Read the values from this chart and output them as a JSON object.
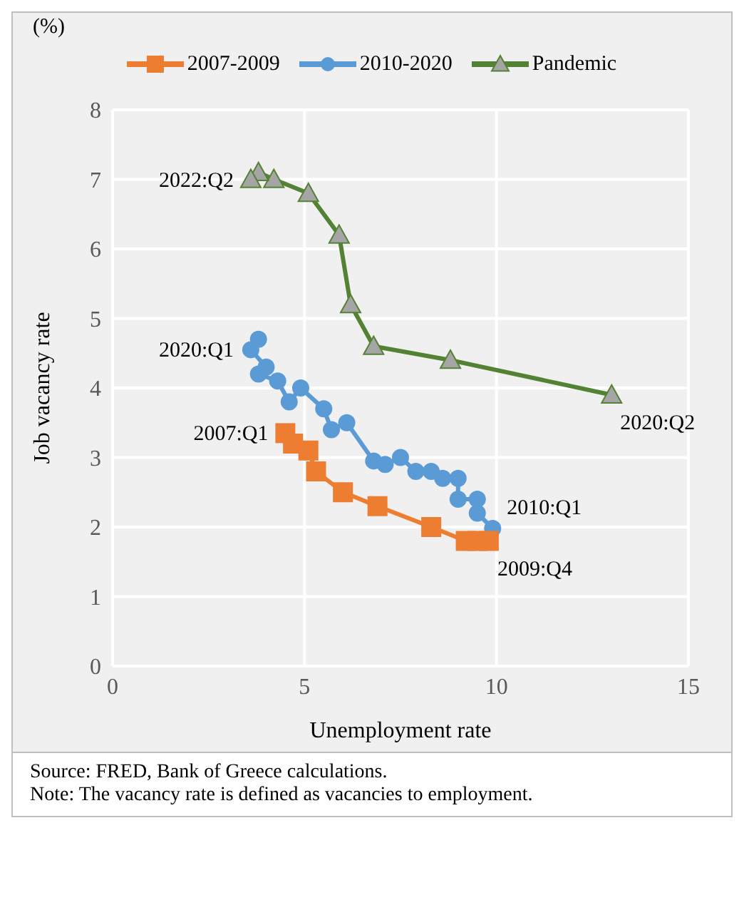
{
  "chart_data": {
    "type": "line",
    "xlabel": "Unemployment rate",
    "ylabel": "Job vacancy rate",
    "xlim": [
      0,
      15
    ],
    "xticks": [
      0,
      5,
      10,
      15
    ],
    "ylim": [
      0,
      8
    ],
    "yticks": [
      0,
      1,
      2,
      3,
      4,
      5,
      6,
      7,
      8
    ],
    "grid": true,
    "legend": "top",
    "series": [
      {
        "name": "2007-2009",
        "color": "#ed7d31",
        "marker": "square",
        "x": [
          4.5,
          4.7,
          5.1,
          5.3,
          6.0,
          6.9,
          8.3,
          9.2,
          9.5,
          9.8
        ],
        "values": [
          3.35,
          3.2,
          3.1,
          2.8,
          2.5,
          2.3,
          2.0,
          1.8,
          1.8,
          1.8
        ]
      },
      {
        "name": "2010-2020",
        "color": "#5b9bd5",
        "marker": "circle",
        "x": [
          9.9,
          9.5,
          9.5,
          9.0,
          9.0,
          8.6,
          8.3,
          7.9,
          7.5,
          7.1,
          6.8,
          6.1,
          5.7,
          5.5,
          4.9,
          4.6,
          4.3,
          3.8,
          4.0,
          3.6,
          3.8
        ],
        "values": [
          1.98,
          2.2,
          2.4,
          2.4,
          2.7,
          2.7,
          2.8,
          2.8,
          3.0,
          2.9,
          2.95,
          3.5,
          3.4,
          3.7,
          4.0,
          3.8,
          4.1,
          4.2,
          4.3,
          4.55,
          4.7
        ]
      },
      {
        "name": "Pandemic",
        "color": "#548235",
        "marker": "triangle",
        "x": [
          13.0,
          8.8,
          6.8,
          6.2,
          5.9,
          5.1,
          4.2,
          3.8,
          3.6
        ],
        "values": [
          3.9,
          4.4,
          4.6,
          5.2,
          6.2,
          6.8,
          7.0,
          7.1,
          7.0
        ]
      }
    ],
    "annotations": [
      {
        "text": "2022:Q2",
        "x": 3.6,
        "y": 7.0
      },
      {
        "text": "2020:Q1",
        "x": 3.6,
        "y": 4.55
      },
      {
        "text": "2007:Q1",
        "x": 4.5,
        "y": 3.35
      },
      {
        "text": "2020:Q2",
        "x": 13.0,
        "y": 3.9
      },
      {
        "text": "2010:Q1",
        "x": 9.9,
        "y": 1.98
      },
      {
        "text": "2009:Q4",
        "x": 9.8,
        "y": 1.8
      },
      "(%)",
      "Source: FRED, Bank of Greece calculations.",
      "Note: The vacancy rate is defined as vacancies to employment."
    ]
  }
}
